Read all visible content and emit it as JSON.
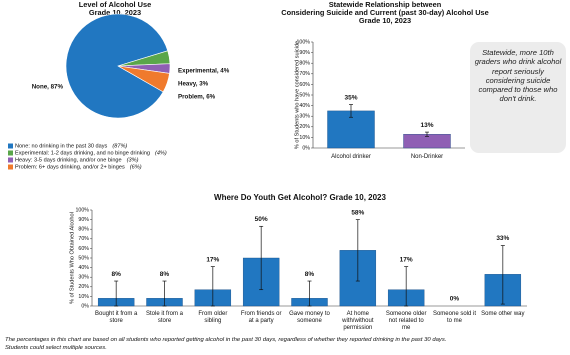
{
  "chart_data": [
    {
      "type": "pie",
      "title_lines": [
        "Level of Alcohol Use",
        "Grade 10, 2023"
      ],
      "values": [
        87,
        4,
        3,
        6
      ],
      "value_labels": [
        "None, 87%",
        "Experimental, 4%",
        "Heavy, 3%",
        "Problem, 6%"
      ],
      "colors": [
        "#2177c1",
        "#5aa64a",
        "#8f5fb4",
        "#f07a2c"
      ],
      "legend_labels": [
        "None: no drinking in the past 30 days",
        "Experimental: 1-2 days drinking, and no binge drinking",
        "Heavy: 3-5 days drinking, and/or one binge",
        "Problem: 6+ days drinking, and/or 2+ binges"
      ],
      "legend_notes": [
        "(87%)",
        "(4%)",
        "(3%)",
        "(6%)"
      ]
    },
    {
      "type": "bar",
      "title_lines": [
        "Statewide Relationship between",
        "Considering Suicide and Current (past 30-day) Alcohol Use",
        "Grade 10, 2023"
      ],
      "categories": [
        "Alcohol drinker",
        "Non-Drinker"
      ],
      "values": [
        35,
        13
      ],
      "value_labels": [
        "35%",
        "13%"
      ],
      "error_lower": [
        29,
        11
      ],
      "error_upper": [
        41,
        15
      ],
      "colors": [
        "#2177c1",
        "#8f5fb4"
      ],
      "ylabel": "% of Students who have considered suicide",
      "ylim": [
        0,
        100
      ],
      "yticks": [
        {
          "value": 0,
          "label": "0%"
        },
        {
          "value": 10,
          "label": "10%"
        },
        {
          "value": 20,
          "label": "20%"
        },
        {
          "value": 30,
          "label": "30%"
        },
        {
          "value": 40,
          "label": "40%"
        },
        {
          "value": 50,
          "label": "50%"
        },
        {
          "value": 60,
          "label": "60%"
        },
        {
          "value": 70,
          "label": "70%"
        },
        {
          "value": 80,
          "label": "80%"
        },
        {
          "value": 90,
          "label": "90%"
        },
        {
          "value": 100,
          "label": "100%"
        }
      ],
      "annotation": "Statewide, more 10th graders who drink alcohol report seriously considering suicide compared to those who don't drink."
    },
    {
      "type": "bar",
      "title_lines": [
        "Where Do Youth Get Alcohol? Grade 10, 2023"
      ],
      "categories": [
        "Bought it from a store",
        "Stole it from a store",
        "From older sibling",
        "From friends or at a party",
        "Gave money to someone",
        "At home with/without permission",
        "Someone older not related to me",
        "Someone sold it to me",
        "Some other way"
      ],
      "values": [
        8,
        8,
        17,
        50,
        8,
        58,
        17,
        0,
        33
      ],
      "value_labels": [
        "8%",
        "8%",
        "17%",
        "50%",
        "8%",
        "58%",
        "17%",
        "0%",
        "33%"
      ],
      "error_lower": [
        0,
        0,
        0,
        17,
        0,
        26,
        0,
        0,
        2
      ],
      "error_upper": [
        26,
        26,
        41,
        83,
        26,
        90,
        41,
        0,
        63
      ],
      "colors": [
        "#2177c1"
      ],
      "ylabel": "% of Students Who Obtained Alcohol",
      "ylim": [
        0,
        100
      ],
      "yticks": [
        {
          "value": 0,
          "label": "0%"
        },
        {
          "value": 10,
          "label": "10%"
        },
        {
          "value": 20,
          "label": "20%"
        },
        {
          "value": 30,
          "label": "30%"
        },
        {
          "value": 40,
          "label": "40%"
        },
        {
          "value": 50,
          "label": "50%"
        },
        {
          "value": 60,
          "label": "60%"
        },
        {
          "value": 70,
          "label": "70%"
        },
        {
          "value": 80,
          "label": "80%"
        },
        {
          "value": 90,
          "label": "90%"
        },
        {
          "value": 100,
          "label": "100%"
        }
      ],
      "footnotes": [
        "The percentages in this chart are based on all students who reported getting alcohol in the past 30 days, regardless of whether they reported drinking in the past 30 days.",
        "Students could select multiple sources."
      ]
    }
  ]
}
